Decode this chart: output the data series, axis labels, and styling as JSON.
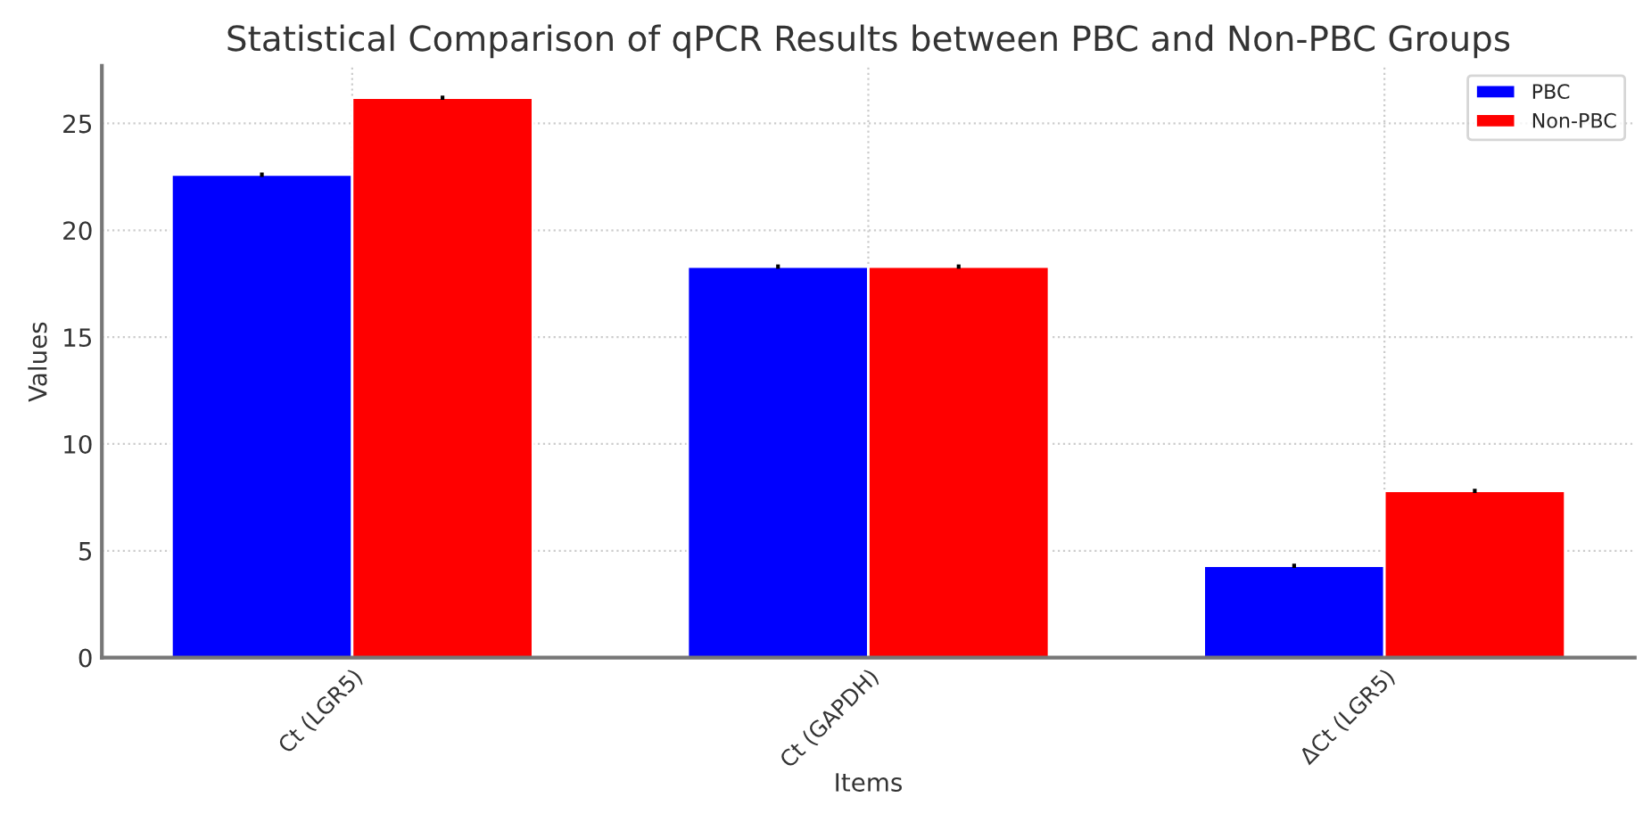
{
  "chart_data": {
    "type": "bar",
    "title": "Statistical Comparison of qPCR Results between PBC and Non-PBC Groups",
    "xlabel": "Items",
    "ylabel": "Values",
    "categories": [
      "Ct (LGR5)",
      "Ct (GAPDH)",
      "ΔCt (LGR5)"
    ],
    "series": [
      {
        "name": "PBC",
        "color": "#0000ff",
        "values": [
          22.6,
          18.3,
          4.3
        ],
        "errors": [
          0.1,
          0.1,
          0.1
        ]
      },
      {
        "name": "Non-PBC",
        "color": "#ff0000",
        "values": [
          26.2,
          18.3,
          7.8
        ],
        "errors": [
          0.1,
          0.1,
          0.1
        ]
      }
    ],
    "ylim": [
      0,
      27.7
    ],
    "yticks": [
      0,
      5,
      10,
      15,
      20,
      25
    ],
    "grid": true,
    "legend": "top right"
  }
}
